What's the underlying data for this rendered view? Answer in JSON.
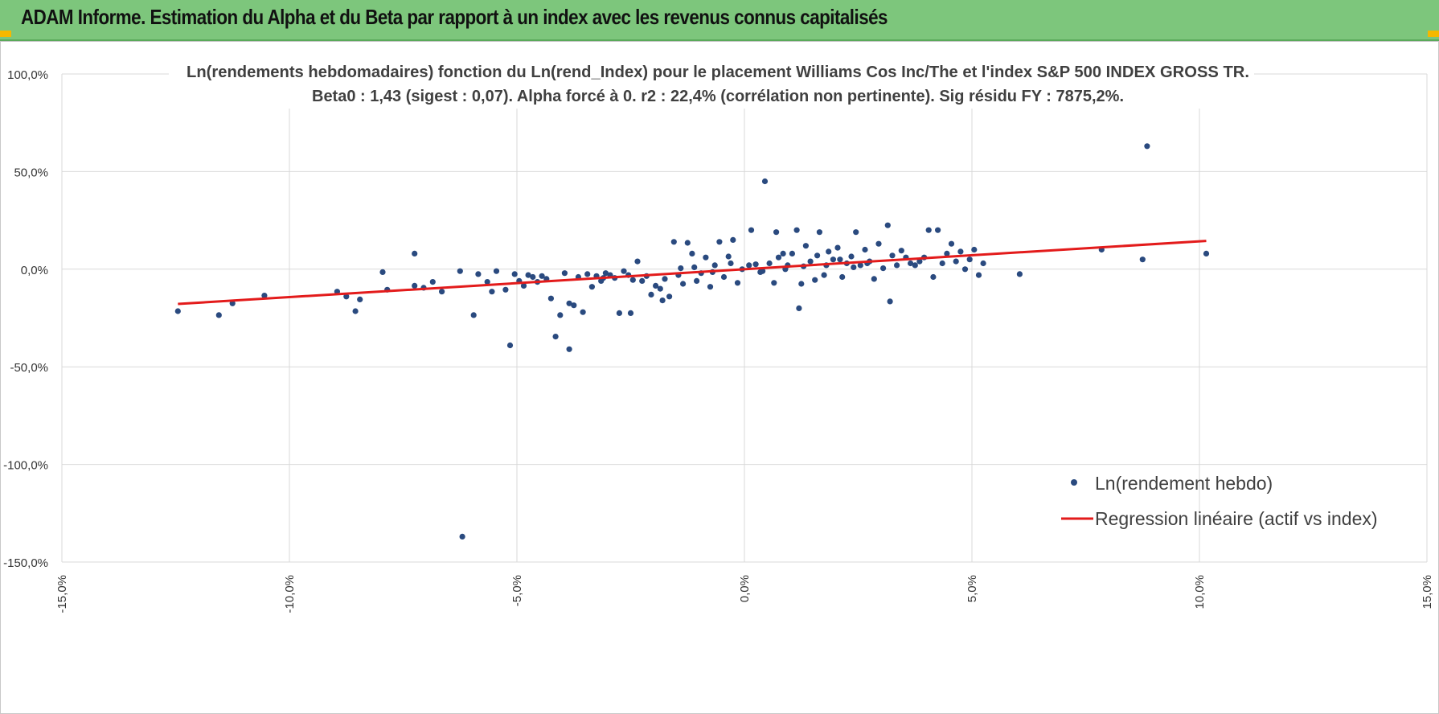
{
  "header": {
    "title": "ADAM Informe. Estimation du Alpha et du Beta par rapport à un index avec les revenus connus capitalisés",
    "accent_color": "#7dc67c"
  },
  "chart_data": {
    "type": "scatter",
    "title_line1": "Ln(rendements hebdomadaires) fonction du Ln(rend_Index) pour le placement Williams Cos Inc/The et l'index S&P 500 INDEX GROSS TR.",
    "title_line2": "Beta0 : 1,43 (sigest : 0,07).  Alpha forcé à 0. r2 : 22,4% (corrélation non pertinente). Sig résidu FY : 7875,2%.",
    "xlim": [
      -0.15,
      0.15
    ],
    "ylim": [
      -1.5,
      1.0
    ],
    "x_ticks": [
      -0.15,
      -0.1,
      -0.05,
      0.0,
      0.05,
      0.1,
      0.15
    ],
    "x_tick_labels": [
      "-15,0%",
      "-10,0%",
      "-5,0%",
      "0,0%",
      "5,0%",
      "10,0%",
      "15,0%"
    ],
    "y_ticks": [
      1.0,
      0.5,
      0.0,
      -0.5,
      -1.0,
      -1.5
    ],
    "y_tick_labels": [
      "100,0%",
      "50,0%",
      "0,0%",
      "-50,0%",
      "-100,0%",
      "-150,0%"
    ],
    "grid": true,
    "legend_position": "bottom-right",
    "series": [
      {
        "name": "Ln(rendement hebdo)",
        "color": "#2a4a7f",
        "points": [
          [
            -0.1245,
            -0.215
          ],
          [
            -0.1155,
            -0.235
          ],
          [
            -0.1125,
            -0.175
          ],
          [
            -0.1055,
            -0.135
          ],
          [
            -0.0895,
            -0.115
          ],
          [
            -0.0875,
            -0.14
          ],
          [
            -0.0855,
            -0.215
          ],
          [
            -0.0845,
            -0.155
          ],
          [
            -0.0795,
            -0.015
          ],
          [
            -0.0785,
            -0.105
          ],
          [
            -0.0725,
            0.08
          ],
          [
            -0.0725,
            -0.085
          ],
          [
            -0.0705,
            -0.095
          ],
          [
            -0.0685,
            -0.065
          ],
          [
            -0.0665,
            -0.115
          ],
          [
            -0.0625,
            -0.01
          ],
          [
            -0.0595,
            -0.235
          ],
          [
            -0.0585,
            -0.025
          ],
          [
            -0.0565,
            -0.065
          ],
          [
            -0.0555,
            -0.115
          ],
          [
            -0.0545,
            -0.01
          ],
          [
            -0.0525,
            -0.105
          ],
          [
            -0.0515,
            -0.39
          ],
          [
            -0.0505,
            -0.025
          ],
          [
            -0.0495,
            -0.06
          ],
          [
            -0.0485,
            -0.085
          ],
          [
            -0.0475,
            -0.03
          ],
          [
            -0.0465,
            -0.04
          ],
          [
            -0.0455,
            -0.065
          ],
          [
            -0.0445,
            -0.035
          ],
          [
            -0.0435,
            -0.05
          ],
          [
            -0.0425,
            -0.15
          ],
          [
            -0.0415,
            -0.345
          ],
          [
            -0.0405,
            -0.235
          ],
          [
            -0.0395,
            -0.02
          ],
          [
            -0.0385,
            -0.175
          ],
          [
            -0.0385,
            -0.41
          ],
          [
            -0.0375,
            -0.185
          ],
          [
            -0.0365,
            -0.04
          ],
          [
            -0.0355,
            -0.22
          ],
          [
            -0.0345,
            -0.025
          ],
          [
            -0.0335,
            -0.09
          ],
          [
            -0.0325,
            -0.035
          ],
          [
            -0.0315,
            -0.06
          ],
          [
            -0.0305,
            -0.02
          ],
          [
            -0.0295,
            -0.03
          ],
          [
            -0.0285,
            -0.045
          ],
          [
            -0.0275,
            -0.225
          ],
          [
            -0.0265,
            -0.01
          ],
          [
            -0.0255,
            -0.03
          ],
          [
            -0.0245,
            -0.055
          ],
          [
            -0.0235,
            0.04
          ],
          [
            -0.0225,
            -0.06
          ],
          [
            -0.0215,
            -0.035
          ],
          [
            -0.0205,
            -0.13
          ],
          [
            -0.0195,
            -0.085
          ],
          [
            -0.0185,
            -0.1
          ],
          [
            -0.0175,
            -0.05
          ],
          [
            -0.0165,
            -0.14
          ],
          [
            -0.0155,
            0.14
          ],
          [
            -0.0145,
            -0.03
          ],
          [
            -0.0135,
            -0.075
          ],
          [
            -0.0125,
            0.135
          ],
          [
            -0.0115,
            0.08
          ],
          [
            -0.0105,
            -0.06
          ],
          [
            -0.0095,
            -0.02
          ],
          [
            -0.0085,
            0.06
          ],
          [
            -0.0075,
            -0.09
          ],
          [
            -0.0065,
            0.02
          ],
          [
            -0.0055,
            0.14
          ],
          [
            -0.0045,
            -0.04
          ],
          [
            -0.0035,
            0.065
          ],
          [
            -0.0025,
            0.15
          ],
          [
            -0.0015,
            -0.07
          ],
          [
            -0.0005,
            0.0
          ],
          [
            0.0015,
            0.2
          ],
          [
            0.0025,
            0.025
          ],
          [
            0.0035,
            -0.015
          ],
          [
            0.0045,
            0.45
          ],
          [
            0.0055,
            0.03
          ],
          [
            0.0065,
            -0.07
          ],
          [
            0.0075,
            0.06
          ],
          [
            0.0085,
            0.08
          ],
          [
            0.0095,
            0.02
          ],
          [
            0.0105,
            0.08
          ],
          [
            0.0115,
            0.2
          ],
          [
            0.0125,
            -0.075
          ],
          [
            0.0135,
            0.12
          ],
          [
            0.0145,
            0.04
          ],
          [
            0.0155,
            -0.055
          ],
          [
            0.0165,
            0.19
          ],
          [
            0.0175,
            -0.03
          ],
          [
            0.0185,
            0.09
          ],
          [
            0.0195,
            0.05
          ],
          [
            0.0205,
            0.11
          ],
          [
            0.0215,
            -0.04
          ],
          [
            0.0225,
            0.03
          ],
          [
            0.0235,
            0.065
          ],
          [
            0.0245,
            0.19
          ],
          [
            0.0255,
            0.02
          ],
          [
            0.0265,
            0.1
          ],
          [
            0.0275,
            0.04
          ],
          [
            0.0285,
            -0.05
          ],
          [
            0.0295,
            0.13
          ],
          [
            0.0305,
            0.005
          ],
          [
            0.0315,
            0.225
          ],
          [
            0.0325,
            0.07
          ],
          [
            0.0335,
            0.02
          ],
          [
            0.0345,
            0.095
          ],
          [
            0.0355,
            0.06
          ],
          [
            0.0365,
            0.03
          ],
          [
            0.0375,
            0.02
          ],
          [
            0.0385,
            0.04
          ],
          [
            0.0395,
            0.06
          ],
          [
            0.0405,
            0.2
          ],
          [
            0.0415,
            -0.04
          ],
          [
            0.0425,
            0.2
          ],
          [
            0.0435,
            0.03
          ],
          [
            0.0445,
            0.08
          ],
          [
            0.0455,
            0.13
          ],
          [
            0.0465,
            0.04
          ],
          [
            0.0475,
            0.09
          ],
          [
            0.0485,
            0.0
          ],
          [
            0.0495,
            0.05
          ],
          [
            0.0505,
            0.1
          ],
          [
            0.0515,
            -0.03
          ],
          [
            0.0525,
            0.03
          ],
          [
            0.0605,
            -0.025
          ],
          [
            0.0785,
            0.1
          ],
          [
            0.0875,
            0.05
          ],
          [
            0.0885,
            0.63
          ],
          [
            0.1015,
            0.08
          ],
          [
            -0.062,
            -1.37
          ],
          [
            -0.025,
            -0.225
          ],
          [
            0.012,
            -0.2
          ],
          [
            0.032,
            -0.165
          ],
          [
            -0.018,
            -0.16
          ],
          [
            0.007,
            0.19
          ],
          [
            -0.031,
            -0.045
          ],
          [
            0.016,
            0.07
          ],
          [
            -0.003,
            0.03
          ],
          [
            0.021,
            0.05
          ],
          [
            0.027,
            0.03
          ],
          [
            -0.011,
            0.01
          ],
          [
            0.004,
            -0.01
          ],
          [
            0.009,
            0.0
          ],
          [
            -0.007,
            -0.015
          ],
          [
            0.018,
            0.02
          ],
          [
            0.024,
            0.01
          ],
          [
            -0.014,
            0.005
          ],
          [
            0.001,
            0.02
          ],
          [
            0.013,
            0.015
          ]
        ]
      },
      {
        "name": "Regression linéaire (actif vs index)",
        "color": "#e31b1b",
        "line": [
          [
            -0.1245,
            -0.178
          ],
          [
            0.1015,
            0.145
          ]
        ]
      }
    ]
  }
}
